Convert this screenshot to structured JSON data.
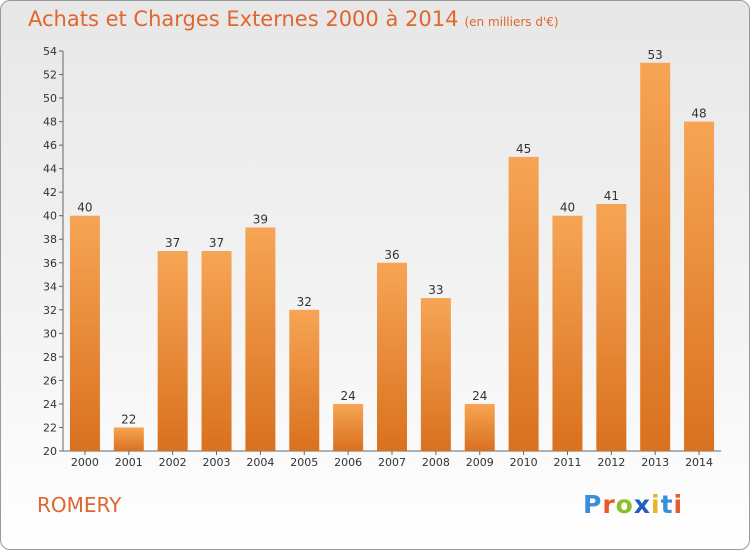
{
  "header": {
    "title": "Achats et Charges Externes 2000 à 2014",
    "subtitle": "(en milliers d'€)"
  },
  "commune": "ROMERY",
  "logo": {
    "letters": [
      "P",
      "r",
      "o",
      "x",
      "i",
      "t",
      "i"
    ],
    "colors": [
      "#3a8fd8",
      "#e85a2a",
      "#8bbf2d",
      "#1f5fbf",
      "#e8b32a",
      "#3a8fd8",
      "#e85a2a"
    ]
  },
  "colors": {
    "bar_light": "#f6a555",
    "bar_dark": "#d9711f",
    "accent": "#e0662e"
  },
  "chart_data": {
    "type": "bar",
    "title": "Achats et Charges Externes 2000 à 2014",
    "subtitle": "(en milliers d'€)",
    "categories": [
      "2000",
      "2001",
      "2002",
      "2003",
      "2004",
      "2005",
      "2006",
      "2007",
      "2008",
      "2009",
      "2010",
      "2011",
      "2012",
      "2013",
      "2014"
    ],
    "values": [
      40,
      22,
      37,
      37,
      39,
      32,
      24,
      36,
      33,
      24,
      45,
      40,
      41,
      53,
      48
    ],
    "ylim": [
      20,
      54
    ],
    "yticks": [
      20,
      22,
      24,
      26,
      28,
      30,
      32,
      34,
      36,
      38,
      40,
      42,
      44,
      46,
      48,
      50,
      52,
      54
    ],
    "grid": false,
    "legend": "none"
  }
}
